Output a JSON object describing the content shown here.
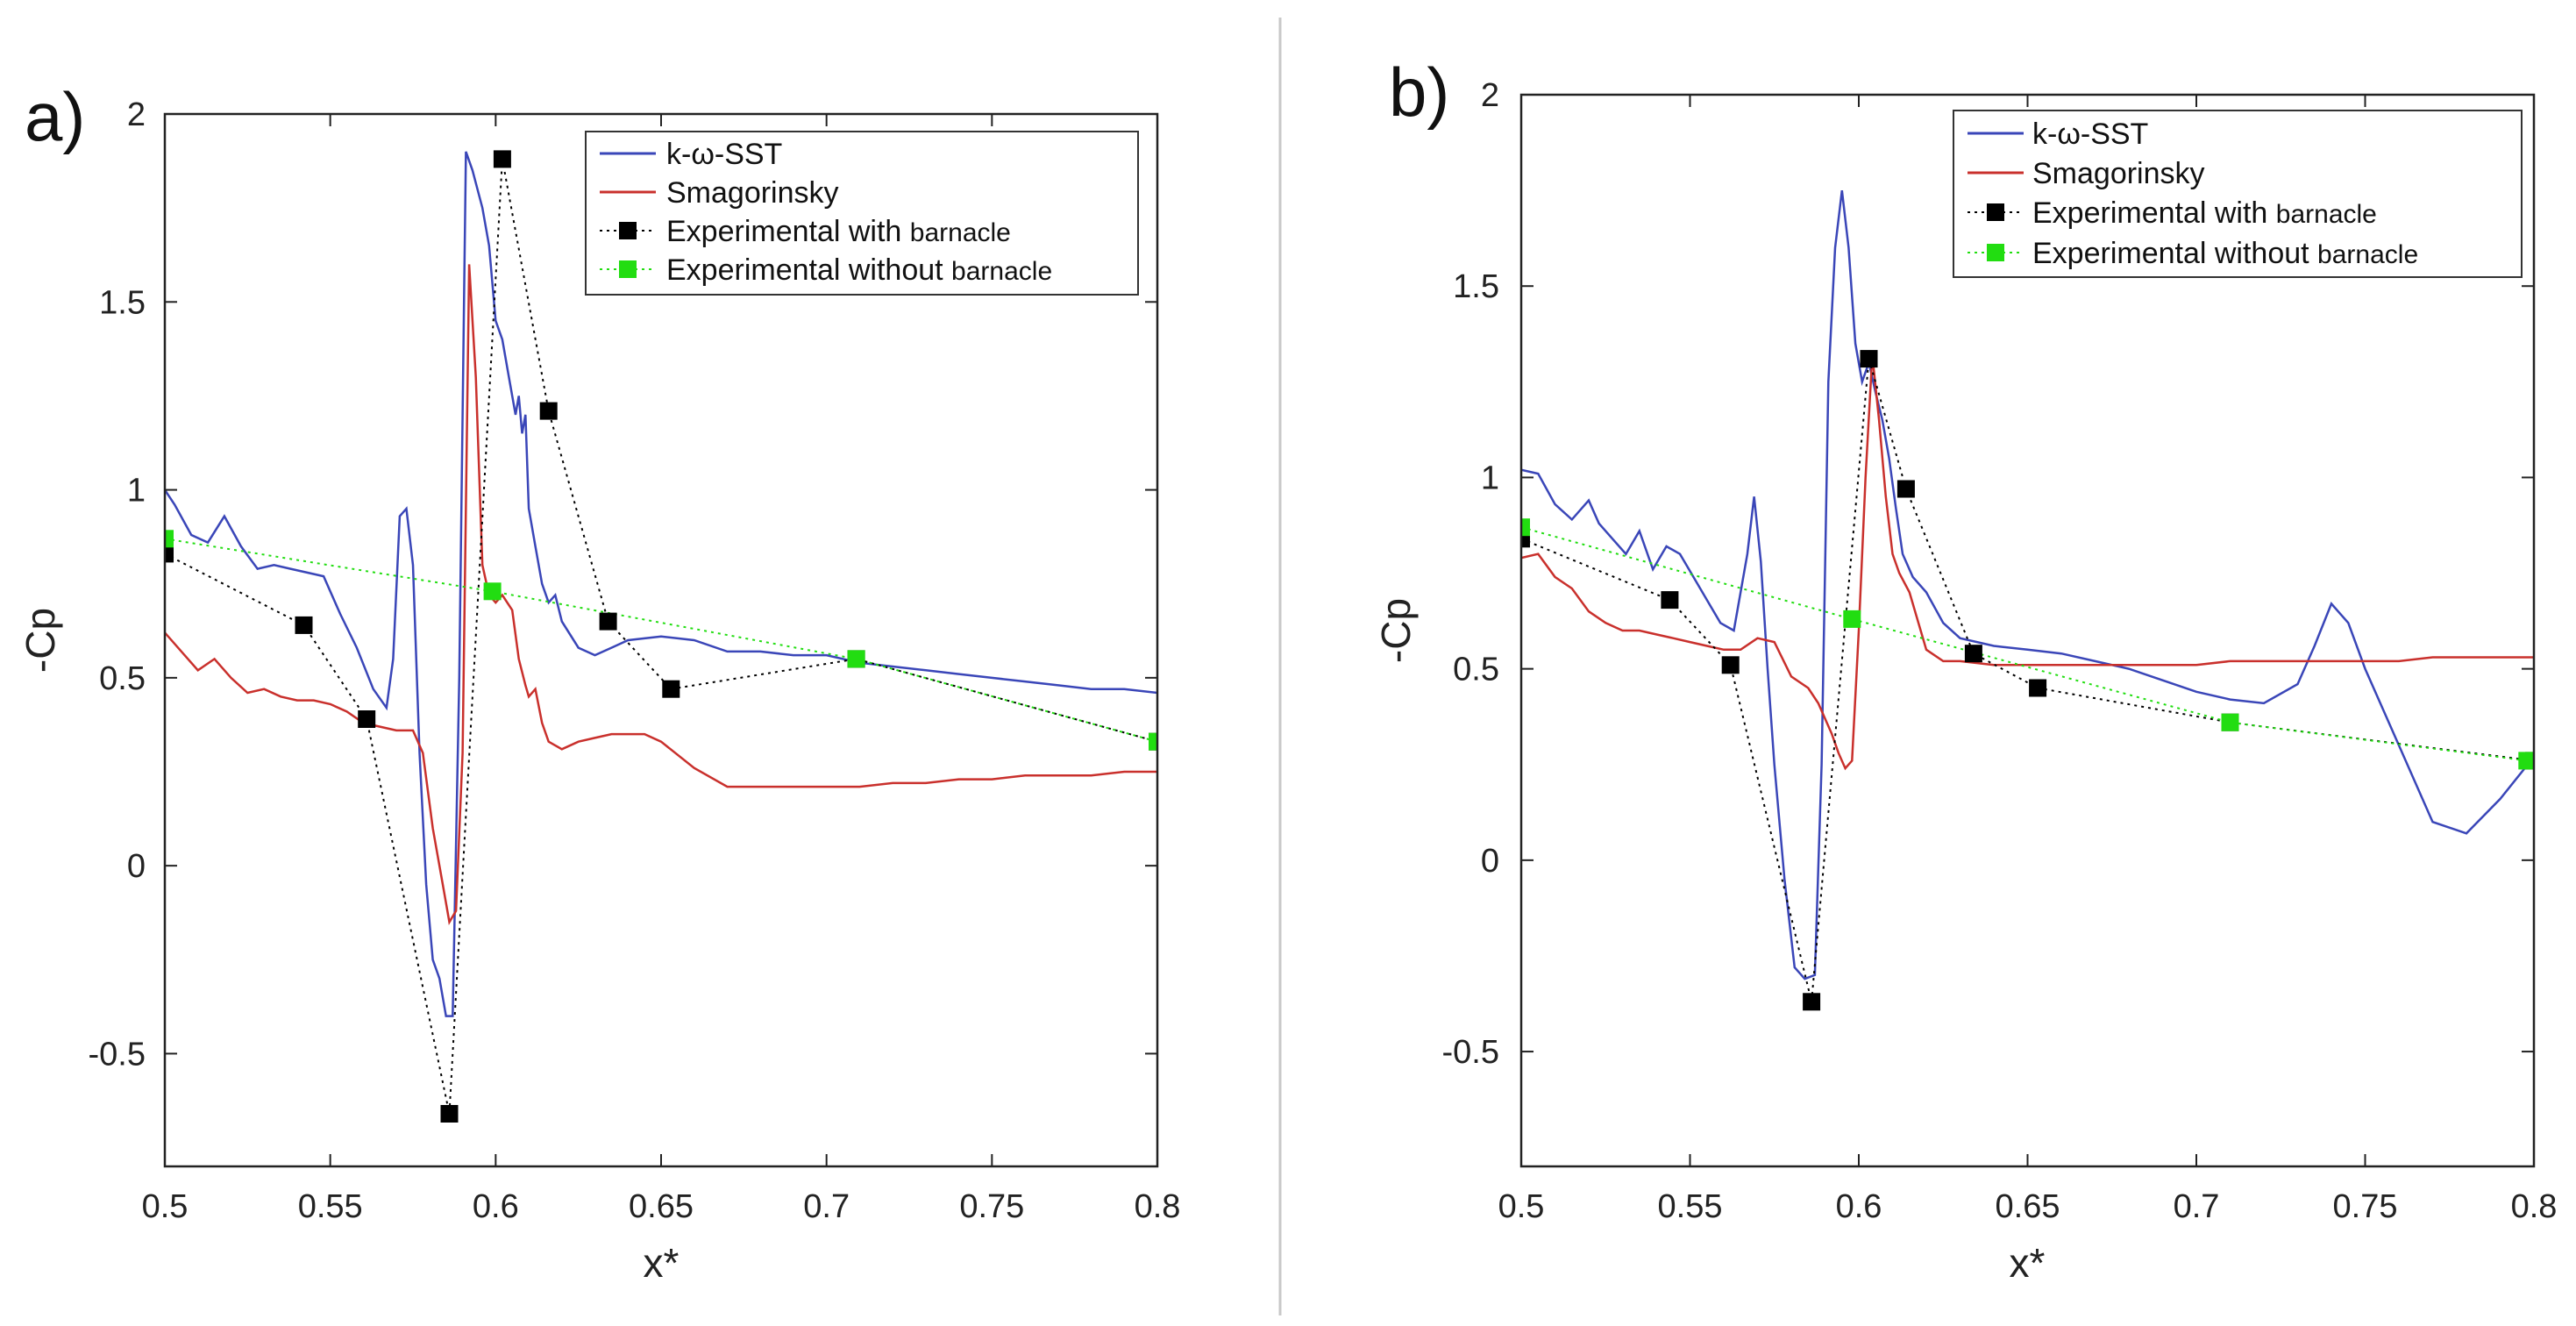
{
  "chart_data": [
    {
      "type": "line",
      "panel_label": "a)",
      "xlabel": "x*",
      "ylabel": "-Cp",
      "xlim": [
        0.5,
        0.8
      ],
      "ylim": [
        -0.8,
        2
      ],
      "xticks": [
        "0.5",
        "0.55",
        "0.6",
        "0.65",
        "0.7",
        "0.75",
        "0.8"
      ],
      "yticks": [
        "-0.5",
        "0",
        "0.5",
        "1",
        "1.5",
        "2"
      ],
      "legend": {
        "position": "top-right",
        "entries": [
          {
            "key": "kws",
            "label": "k-ω-SST"
          },
          {
            "key": "smag",
            "label": "Smagorinsky"
          },
          {
            "key": "exp_with",
            "label_main": "Experimental with ",
            "label_suffix": "barnacle"
          },
          {
            "key": "exp_without",
            "label_main": "Experimental without ",
            "label_suffix": "barnacle"
          }
        ]
      },
      "series": [
        {
          "name": "k-ω-SST",
          "style": "line",
          "color": "#3a46b8",
          "x": [
            0.5,
            0.503,
            0.508,
            0.513,
            0.518,
            0.523,
            0.528,
            0.533,
            0.538,
            0.543,
            0.548,
            0.553,
            0.558,
            0.563,
            0.567,
            0.569,
            0.571,
            0.573,
            0.575,
            0.577,
            0.579,
            0.581,
            0.583,
            0.585,
            0.587,
            0.589,
            0.591,
            0.593,
            0.596,
            0.598,
            0.6,
            0.602,
            0.604,
            0.606,
            0.607,
            0.608,
            0.609,
            0.61,
            0.612,
            0.614,
            0.616,
            0.618,
            0.62,
            0.625,
            0.63,
            0.635,
            0.64,
            0.65,
            0.66,
            0.67,
            0.68,
            0.69,
            0.7,
            0.71,
            0.72,
            0.73,
            0.74,
            0.75,
            0.76,
            0.77,
            0.78,
            0.79,
            0.8
          ],
          "y": [
            1.0,
            0.96,
            0.88,
            0.86,
            0.93,
            0.85,
            0.79,
            0.8,
            0.79,
            0.78,
            0.77,
            0.67,
            0.58,
            0.47,
            0.42,
            0.55,
            0.93,
            0.95,
            0.8,
            0.3,
            -0.05,
            -0.25,
            -0.3,
            -0.4,
            -0.4,
            0.5,
            1.9,
            1.85,
            1.75,
            1.65,
            1.45,
            1.4,
            1.3,
            1.2,
            1.25,
            1.15,
            1.2,
            0.95,
            0.85,
            0.75,
            0.7,
            0.72,
            0.65,
            0.58,
            0.56,
            0.58,
            0.6,
            0.61,
            0.6,
            0.57,
            0.57,
            0.56,
            0.56,
            0.54,
            0.53,
            0.52,
            0.51,
            0.5,
            0.49,
            0.48,
            0.47,
            0.47,
            0.46
          ]
        },
        {
          "name": "Smagorinsky",
          "style": "line",
          "color": "#c9302c",
          "x": [
            0.5,
            0.505,
            0.51,
            0.515,
            0.52,
            0.525,
            0.53,
            0.535,
            0.54,
            0.545,
            0.55,
            0.555,
            0.56,
            0.565,
            0.57,
            0.575,
            0.578,
            0.581,
            0.584,
            0.586,
            0.588,
            0.59,
            0.592,
            0.594,
            0.596,
            0.598,
            0.6,
            0.602,
            0.605,
            0.607,
            0.609,
            0.61,
            0.612,
            0.614,
            0.616,
            0.62,
            0.625,
            0.63,
            0.635,
            0.64,
            0.645,
            0.65,
            0.66,
            0.67,
            0.68,
            0.69,
            0.7,
            0.71,
            0.72,
            0.73,
            0.74,
            0.75,
            0.76,
            0.77,
            0.78,
            0.79,
            0.8
          ],
          "y": [
            0.62,
            0.57,
            0.52,
            0.55,
            0.5,
            0.46,
            0.47,
            0.45,
            0.44,
            0.44,
            0.43,
            0.41,
            0.38,
            0.37,
            0.36,
            0.36,
            0.3,
            0.1,
            -0.05,
            -0.15,
            -0.12,
            0.3,
            1.6,
            1.3,
            0.8,
            0.72,
            0.7,
            0.72,
            0.68,
            0.55,
            0.48,
            0.45,
            0.47,
            0.38,
            0.33,
            0.31,
            0.33,
            0.34,
            0.35,
            0.35,
            0.35,
            0.33,
            0.26,
            0.21,
            0.21,
            0.21,
            0.21,
            0.21,
            0.22,
            0.22,
            0.23,
            0.23,
            0.24,
            0.24,
            0.24,
            0.25,
            0.25
          ]
        },
        {
          "name": "Experimental with barnacle",
          "style": "markers-dotted",
          "color": "#000000",
          "x": [
            0.5,
            0.542,
            0.561,
            0.586,
            0.602,
            0.616,
            0.634,
            0.653,
            0.709,
            0.8
          ],
          "y": [
            0.83,
            0.64,
            0.39,
            -0.66,
            1.88,
            1.21,
            0.65,
            0.47,
            0.55,
            0.33
          ]
        },
        {
          "name": "Experimental without barnacle",
          "style": "markers-dotted",
          "color": "#22dd11",
          "x": [
            0.5,
            0.599,
            0.709,
            0.8
          ],
          "y": [
            0.87,
            0.73,
            0.55,
            0.33
          ]
        }
      ]
    },
    {
      "type": "line",
      "panel_label": "b)",
      "xlabel": "x*",
      "ylabel": "-Cp",
      "xlim": [
        0.5,
        0.8
      ],
      "ylim": [
        -0.8,
        2
      ],
      "xticks": [
        "0.5",
        "0.55",
        "0.6",
        "0.65",
        "0.7",
        "0.75",
        "0.8"
      ],
      "yticks": [
        "-0.5",
        "0",
        "0.5",
        "1",
        "1.5",
        "2"
      ],
      "legend": {
        "position": "top-right",
        "entries": [
          {
            "key": "kws",
            "label": "k-ω-SST"
          },
          {
            "key": "smag",
            "label": "Smagorinsky"
          },
          {
            "key": "exp_with",
            "label_main": "Experimental with ",
            "label_suffix": "barnacle"
          },
          {
            "key": "exp_without",
            "label_main": "Experimental without ",
            "label_suffix": "barnacle"
          }
        ]
      },
      "series": [
        {
          "name": "k-ω-SST",
          "style": "line",
          "color": "#3a46b8",
          "x": [
            0.5,
            0.505,
            0.51,
            0.515,
            0.52,
            0.523,
            0.527,
            0.531,
            0.535,
            0.539,
            0.543,
            0.547,
            0.551,
            0.555,
            0.559,
            0.563,
            0.567,
            0.569,
            0.571,
            0.573,
            0.575,
            0.578,
            0.581,
            0.584,
            0.587,
            0.589,
            0.591,
            0.593,
            0.595,
            0.597,
            0.599,
            0.601,
            0.603,
            0.605,
            0.607,
            0.609,
            0.611,
            0.613,
            0.616,
            0.62,
            0.625,
            0.63,
            0.64,
            0.65,
            0.66,
            0.67,
            0.68,
            0.69,
            0.7,
            0.71,
            0.72,
            0.73,
            0.735,
            0.74,
            0.745,
            0.75,
            0.76,
            0.77,
            0.78,
            0.79,
            0.8
          ],
          "y": [
            1.02,
            1.01,
            0.93,
            0.89,
            0.94,
            0.88,
            0.84,
            0.8,
            0.86,
            0.76,
            0.82,
            0.8,
            0.74,
            0.68,
            0.62,
            0.6,
            0.8,
            0.95,
            0.78,
            0.5,
            0.25,
            -0.05,
            -0.28,
            -0.31,
            -0.3,
            0.25,
            1.25,
            1.6,
            1.75,
            1.6,
            1.35,
            1.25,
            1.3,
            1.22,
            1.15,
            1.05,
            0.92,
            0.8,
            0.74,
            0.7,
            0.62,
            0.58,
            0.56,
            0.55,
            0.54,
            0.52,
            0.5,
            0.47,
            0.44,
            0.42,
            0.41,
            0.46,
            0.56,
            0.67,
            0.62,
            0.5,
            0.3,
            0.1,
            0.07,
            0.16,
            0.27
          ]
        },
        {
          "name": "Smagorinsky",
          "style": "line",
          "color": "#c9302c",
          "x": [
            0.5,
            0.505,
            0.51,
            0.515,
            0.52,
            0.525,
            0.53,
            0.535,
            0.54,
            0.545,
            0.55,
            0.555,
            0.56,
            0.565,
            0.57,
            0.575,
            0.58,
            0.585,
            0.588,
            0.59,
            0.592,
            0.594,
            0.596,
            0.598,
            0.6,
            0.602,
            0.604,
            0.606,
            0.608,
            0.61,
            0.612,
            0.615,
            0.62,
            0.625,
            0.63,
            0.64,
            0.65,
            0.66,
            0.67,
            0.68,
            0.69,
            0.7,
            0.71,
            0.72,
            0.73,
            0.74,
            0.75,
            0.76,
            0.77,
            0.78,
            0.79,
            0.8
          ],
          "y": [
            0.79,
            0.8,
            0.74,
            0.71,
            0.65,
            0.62,
            0.6,
            0.6,
            0.59,
            0.58,
            0.57,
            0.56,
            0.55,
            0.55,
            0.58,
            0.57,
            0.48,
            0.45,
            0.41,
            0.37,
            0.33,
            0.28,
            0.24,
            0.26,
            0.6,
            1.0,
            1.32,
            1.15,
            0.95,
            0.8,
            0.75,
            0.7,
            0.55,
            0.52,
            0.52,
            0.51,
            0.51,
            0.51,
            0.51,
            0.51,
            0.51,
            0.51,
            0.52,
            0.52,
            0.52,
            0.52,
            0.52,
            0.52,
            0.53,
            0.53,
            0.53,
            0.53
          ]
        },
        {
          "name": "Experimental with barnacle",
          "style": "markers-dotted",
          "color": "#000000",
          "x": [
            0.5,
            0.544,
            0.562,
            0.586,
            0.603,
            0.614,
            0.634,
            0.653,
            0.71,
            0.8
          ],
          "y": [
            0.84,
            0.68,
            0.51,
            -0.37,
            1.31,
            0.97,
            0.54,
            0.45,
            0.36,
            0.26
          ]
        },
        {
          "name": "Experimental without barnacle",
          "style": "markers-dotted",
          "color": "#22dd11",
          "x": [
            0.5,
            0.598,
            0.71,
            0.798
          ],
          "y": [
            0.87,
            0.63,
            0.36,
            0.26
          ]
        }
      ]
    }
  ]
}
